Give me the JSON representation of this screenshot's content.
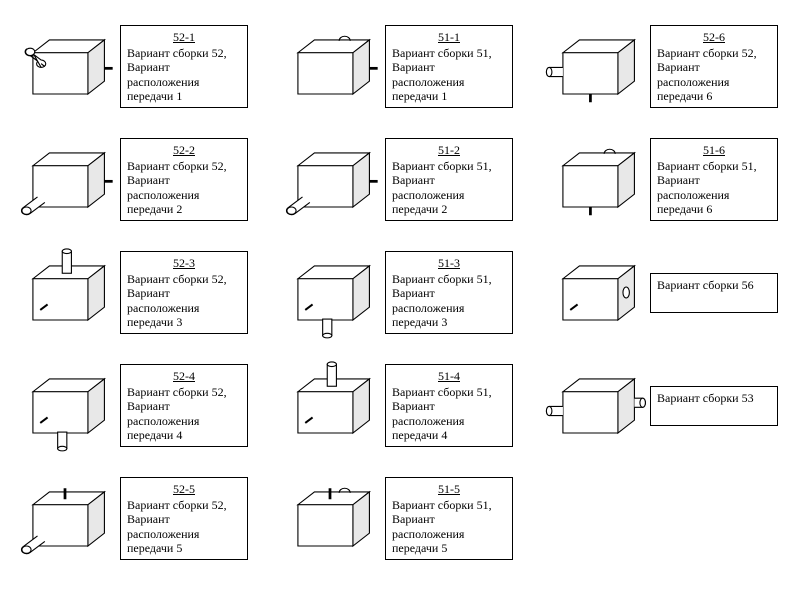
{
  "stroke": "#000000",
  "fillLight": "#ffffff",
  "fillShade": "#e8e8e8",
  "strokeWidth": 1.2,
  "items": [
    {
      "code": "52-1",
      "desc": "Вариант сборки 52, Вариант расположения передачи 1",
      "shaft": "front-left",
      "mark": "right"
    },
    {
      "code": "51-1",
      "desc": "Вариант сборки 51, Вариант расположения передачи 1",
      "shaft": "top-back",
      "mark": "right"
    },
    {
      "code": "52-6",
      "desc": "Вариант сборки 52, Вариант расположения передачи 6",
      "shaft": "left-side",
      "mark": "bottom"
    },
    {
      "code": "52-2",
      "desc": "Вариант сборки 52, Вариант расположения передачи 2",
      "shaft": "front-bl",
      "mark": "right"
    },
    {
      "code": "51-2",
      "desc": "Вариант сборки 51, Вариант расположения передачи 2",
      "shaft": "front-bl",
      "mark": "right"
    },
    {
      "code": "51-6",
      "desc": "Вариант сборки 51, Вариант расположения передачи 6",
      "shaft": "top-back",
      "mark": "bottom"
    },
    {
      "code": "52-3",
      "desc": "Вариант сборки 52, Вариант расположения передачи 3",
      "shaft": "top-up",
      "mark": "front"
    },
    {
      "code": "51-3",
      "desc": "Вариант сборки 51, Вариант расположения передачи 3",
      "shaft": "bottom-down",
      "mark": "front"
    },
    {
      "code": "",
      "desc": "Вариант сборки 56",
      "shaft": "right-hole",
      "mark": "front",
      "short": true
    },
    {
      "code": "52-4",
      "desc": "Вариант сборки 52, Вариант расположения передачи 4",
      "shaft": "bottom-down",
      "mark": "front"
    },
    {
      "code": "51-4",
      "desc": "Вариант сборки 51, Вариант расположения передачи 4",
      "shaft": "top-up",
      "mark": "front"
    },
    {
      "code": "",
      "desc": "Вариант сборки 53",
      "shaft": "both-sides",
      "mark": "none",
      "short": true
    },
    {
      "code": "52-5",
      "desc": "Вариант сборки 52, Вариант расположения передачи 5",
      "shaft": "front-bl",
      "mark": "top"
    },
    {
      "code": "51-5",
      "desc": "Вариант сборки 51, Вариант расположения передачи 5",
      "shaft": "top-back",
      "mark": "top"
    }
  ]
}
